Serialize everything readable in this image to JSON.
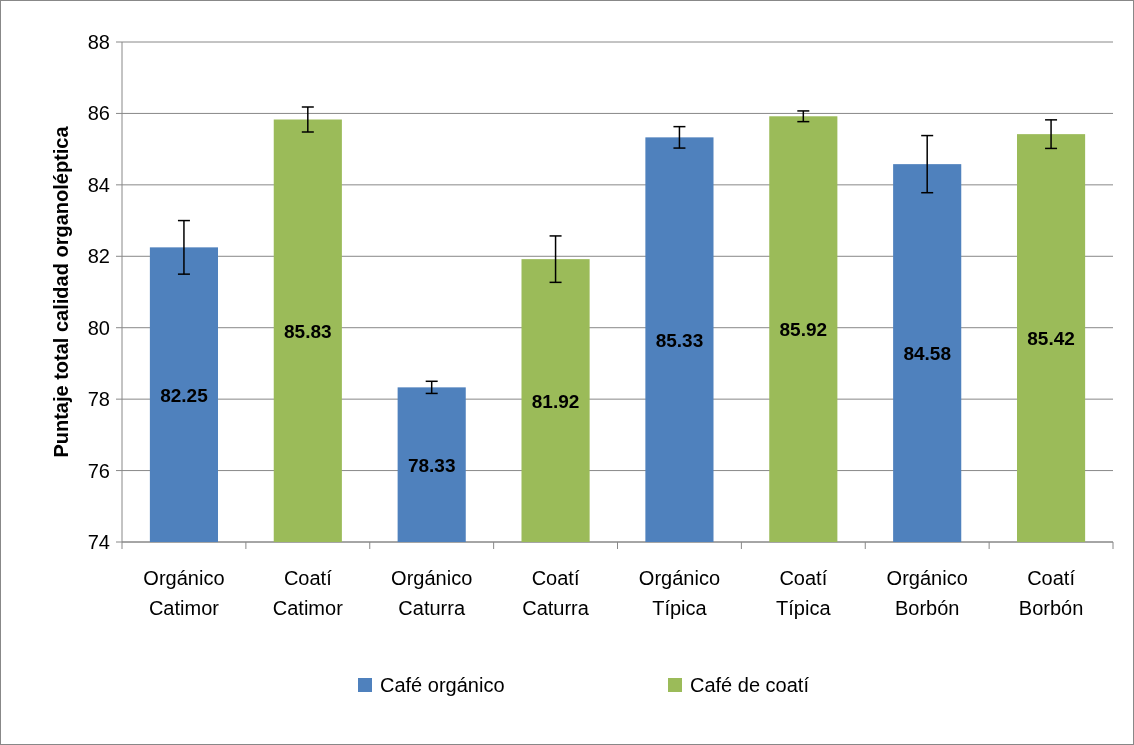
{
  "chart_data": {
    "type": "bar",
    "ylabel": "Puntaje total calidad organoléptica",
    "categories": [
      "Orgánico Catimor",
      "Coatí Catimor",
      "Orgánico Caturra",
      "Coatí Caturra",
      "Orgánico Típica",
      "Coatí Típica",
      "Orgánico Borbón",
      "Coatí Borbón"
    ],
    "series": [
      {
        "name": "Café orgánico",
        "color": "#4f81bd",
        "values": [
          82.25,
          null,
          78.33,
          null,
          85.33,
          null,
          84.58,
          null
        ],
        "errors": [
          0.75,
          null,
          0.17,
          null,
          0.3,
          null,
          0.8,
          null
        ]
      },
      {
        "name": "Café de coatí",
        "color": "#9bbb59",
        "values": [
          null,
          85.83,
          null,
          81.92,
          null,
          85.92,
          null,
          85.42
        ],
        "errors": [
          null,
          0.35,
          null,
          0.65,
          null,
          0.15,
          null,
          0.4
        ]
      }
    ],
    "ylim": [
      74,
      88
    ],
    "yticks": [
      74,
      76,
      78,
      80,
      82,
      84,
      86,
      88
    ],
    "grid": "y",
    "legend": "bottom",
    "data_labels": true
  }
}
